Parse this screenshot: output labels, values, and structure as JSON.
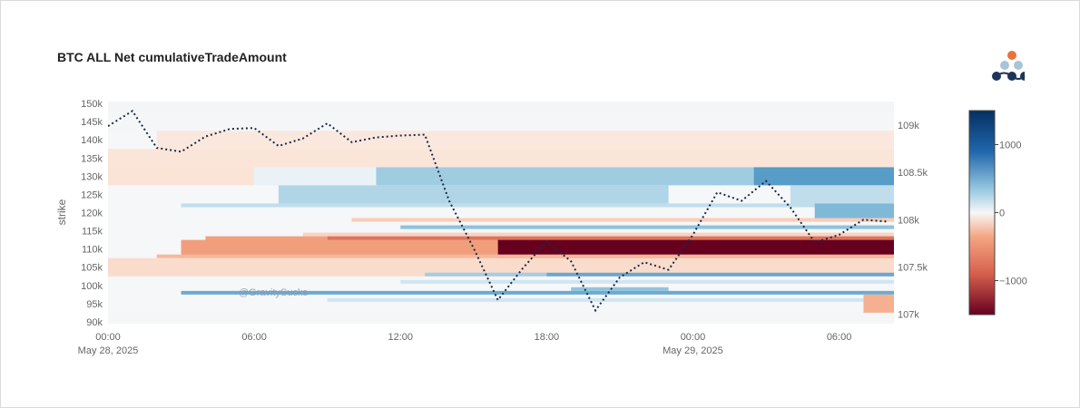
{
  "colors": {
    "neg_extreme": "#67001f",
    "neg_strong": "#c2483d",
    "neg_mid": "#f4a582",
    "neg_light": "#fbe3d6",
    "neutral": "#f7f7f7",
    "pos_light": "#d1e5f0",
    "pos_mid": "#92c5de",
    "pos_strong": "#3a87bd",
    "pos_extreme": "#053061",
    "price_line": "#1a2a44",
    "logo_orange": "#e8743b",
    "logo_light": "#a9c4d8",
    "logo_dark": "#1d3557"
  },
  "watermark": "@GravitySucks",
  "chart_data": {
    "type": "heatmap",
    "title": "BTC ALL Net cumulativeTradeAmount",
    "xlabel": "",
    "ylabel": "strike",
    "x_range": [
      "2025-05-28T00:00",
      "2025-05-29T08:15"
    ],
    "x_ticks": [
      {
        "x": "2025-05-28T00:00",
        "label": "00:00",
        "sublabel": "May 28, 2025"
      },
      {
        "x": "2025-05-28T06:00",
        "label": "06:00",
        "sublabel": ""
      },
      {
        "x": "2025-05-28T12:00",
        "label": "12:00",
        "sublabel": ""
      },
      {
        "x": "2025-05-28T18:00",
        "label": "18:00",
        "sublabel": ""
      },
      {
        "x": "2025-05-29T00:00",
        "label": "00:00",
        "sublabel": "May 29, 2025"
      },
      {
        "x": "2025-05-29T06:00",
        "label": "06:00",
        "sublabel": ""
      }
    ],
    "y_range": [
      89500,
      150500
    ],
    "y_ticks": [
      {
        "v": 150000,
        "label": "150k"
      },
      {
        "v": 145000,
        "label": "145k"
      },
      {
        "v": 140000,
        "label": "140k"
      },
      {
        "v": 135000,
        "label": "135k"
      },
      {
        "v": 130000,
        "label": "130k"
      },
      {
        "v": 125000,
        "label": "125k"
      },
      {
        "v": 120000,
        "label": "120k"
      },
      {
        "v": 115000,
        "label": "115k"
      },
      {
        "v": 110000,
        "label": "110k"
      },
      {
        "v": 105000,
        "label": "105k"
      },
      {
        "v": 100000,
        "label": "100k"
      },
      {
        "v": 95000,
        "label": "95k"
      },
      {
        "v": 90000,
        "label": "90k"
      }
    ],
    "y2_range": [
      106900,
      109250
    ],
    "y2_ticks": [
      {
        "v": 109000,
        "label": "109k"
      },
      {
        "v": 108500,
        "label": "108.5k"
      },
      {
        "v": 108000,
        "label": "108k"
      },
      {
        "v": 107500,
        "label": "107.5k"
      },
      {
        "v": 107000,
        "label": "107k"
      }
    ],
    "colorscale": "RdBu",
    "zrange": [
      -1500,
      1500
    ],
    "colorbar_ticks": [
      {
        "v": 1000,
        "label": "1000"
      },
      {
        "v": 0,
        "label": "0"
      },
      {
        "v": -1000,
        "label": "−1000"
      }
    ],
    "heatmap_bands": [
      {
        "strike": 130000,
        "segments": [
          {
            "from": "2025-05-28T00:00",
            "to": "2025-05-28T06:00",
            "value": -120
          },
          {
            "from": "2025-05-28T06:00",
            "to": "2025-05-28T11:00",
            "value": 80
          },
          {
            "from": "2025-05-28T11:00",
            "to": "2025-05-29T02:30",
            "value": 330
          },
          {
            "from": "2025-05-29T02:30",
            "to": "2025-05-29T08:15",
            "value": 720
          }
        ]
      },
      {
        "strike": 135000,
        "segments": [
          {
            "from": "2025-05-28T00:00",
            "to": "2025-05-29T08:15",
            "value": -110
          }
        ]
      },
      {
        "strike": 140000,
        "segments": [
          {
            "from": "2025-05-28T02:00",
            "to": "2025-05-29T08:15",
            "value": -90
          }
        ]
      },
      {
        "strike": 145000,
        "segments": [
          {
            "from": "2025-05-28T00:00",
            "to": "2025-05-29T08:15",
            "value": 15
          }
        ]
      },
      {
        "strike": 150000,
        "segments": [
          {
            "from": "2025-05-28T00:00",
            "to": "2025-05-29T08:15",
            "value": 25
          }
        ]
      },
      {
        "strike": 125000,
        "segments": [
          {
            "from": "2025-05-28T07:00",
            "to": "2025-05-28T23:00",
            "value": 280
          },
          {
            "from": "2025-05-29T04:00",
            "to": "2025-05-29T08:15",
            "value": 230
          }
        ]
      },
      {
        "strike": 122000,
        "segments": [
          {
            "from": "2025-05-28T03:00",
            "to": "2025-05-29T08:15",
            "value": 230
          }
        ]
      },
      {
        "strike": 120000,
        "segments": [
          {
            "from": "2025-05-29T05:00",
            "to": "2025-05-29T08:15",
            "value": 480
          }
        ]
      },
      {
        "strike": 118000,
        "segments": [
          {
            "from": "2025-05-28T10:00",
            "to": "2025-05-29T08:15",
            "value": -210
          }
        ]
      },
      {
        "strike": 116000,
        "segments": [
          {
            "from": "2025-05-28T12:00",
            "to": "2025-05-29T08:15",
            "value": 400
          }
        ]
      },
      {
        "strike": 114000,
        "segments": [
          {
            "from": "2025-05-28T08:00",
            "to": "2025-05-29T08:15",
            "value": -180
          }
        ]
      },
      {
        "strike": 113000,
        "segments": [
          {
            "from": "2025-05-28T04:00",
            "to": "2025-05-28T09:00",
            "value": -420
          },
          {
            "from": "2025-05-28T09:00",
            "to": "2025-05-29T08:15",
            "value": -760
          }
        ]
      },
      {
        "strike": 112000,
        "segments": [
          {
            "from": "2025-05-28T04:00",
            "to": "2025-05-29T08:15",
            "value": -620
          }
        ]
      },
      {
        "strike": 111000,
        "segments": [
          {
            "from": "2025-05-28T12:00",
            "to": "2025-05-29T08:15",
            "value": -260
          }
        ]
      },
      {
        "strike": 110000,
        "segments": [
          {
            "from": "2025-05-28T03:00",
            "to": "2025-05-28T16:00",
            "value": -430
          },
          {
            "from": "2025-05-28T16:00",
            "to": "2025-05-29T08:15",
            "value": -1500
          }
        ]
      },
      {
        "strike": 108000,
        "segments": [
          {
            "from": "2025-05-28T02:00",
            "to": "2025-05-29T08:15",
            "value": -300
          }
        ]
      },
      {
        "strike": 105000,
        "segments": [
          {
            "from": "2025-05-28T00:00",
            "to": "2025-05-29T08:15",
            "value": -150
          }
        ]
      },
      {
        "strike": 103000,
        "segments": [
          {
            "from": "2025-05-28T13:00",
            "to": "2025-05-28T18:00",
            "value": 320
          },
          {
            "from": "2025-05-28T18:00",
            "to": "2025-05-29T08:15",
            "value": 620
          }
        ]
      },
      {
        "strike": 101000,
        "segments": [
          {
            "from": "2025-05-28T12:00",
            "to": "2025-05-29T08:15",
            "value": 180
          }
        ]
      },
      {
        "strike": 99000,
        "segments": [
          {
            "from": "2025-05-28T19:00",
            "to": "2025-05-28T23:00",
            "value": 380
          }
        ]
      },
      {
        "strike": 98000,
        "segments": [
          {
            "from": "2025-05-28T03:00",
            "to": "2025-05-29T08:15",
            "value": 600
          }
        ]
      },
      {
        "strike": 96000,
        "segments": [
          {
            "from": "2025-05-28T09:00",
            "to": "2025-05-29T08:15",
            "value": 180
          }
        ]
      },
      {
        "strike": 95000,
        "segments": [
          {
            "from": "2025-05-29T07:00",
            "to": "2025-05-29T08:15",
            "value": -330
          }
        ]
      },
      {
        "strike": 92000,
        "segments": [
          {
            "from": "2025-05-29T02:30",
            "to": "2025-05-29T08:15",
            "value": 240
          }
        ]
      },
      {
        "strike": 90000,
        "segments": [
          {
            "from": "2025-05-28T00:00",
            "to": "2025-05-29T08:15",
            "value": 20
          }
        ]
      }
    ],
    "series": [
      {
        "type": "line",
        "axis": "y2",
        "style": "dotted",
        "x": [
          "2025-05-28T00:00",
          "2025-05-28T01:00",
          "2025-05-28T02:00",
          "2025-05-28T03:00",
          "2025-05-28T04:00",
          "2025-05-28T05:00",
          "2025-05-28T06:00",
          "2025-05-28T07:00",
          "2025-05-28T08:00",
          "2025-05-28T09:00",
          "2025-05-28T10:00",
          "2025-05-28T11:00",
          "2025-05-28T12:00",
          "2025-05-28T13:00",
          "2025-05-28T14:00",
          "2025-05-28T15:00",
          "2025-05-28T16:00",
          "2025-05-28T17:00",
          "2025-05-28T18:00",
          "2025-05-28T19:00",
          "2025-05-28T20:00",
          "2025-05-28T21:00",
          "2025-05-28T22:00",
          "2025-05-28T23:00",
          "2025-05-29T00:00",
          "2025-05-29T01:00",
          "2025-05-29T02:00",
          "2025-05-29T03:00",
          "2025-05-29T04:00",
          "2025-05-29T05:00",
          "2025-05-29T06:00",
          "2025-05-29T07:00",
          "2025-05-29T08:00"
        ],
        "y": [
          108990,
          109150,
          108760,
          108720,
          108880,
          108960,
          108970,
          108780,
          108860,
          109020,
          108820,
          108870,
          108890,
          108900,
          108200,
          107700,
          107150,
          107480,
          107770,
          107560,
          107040,
          107390,
          107550,
          107470,
          107840,
          108290,
          108200,
          108410,
          108130,
          107760,
          107840,
          108000,
          107980
        ]
      }
    ]
  }
}
